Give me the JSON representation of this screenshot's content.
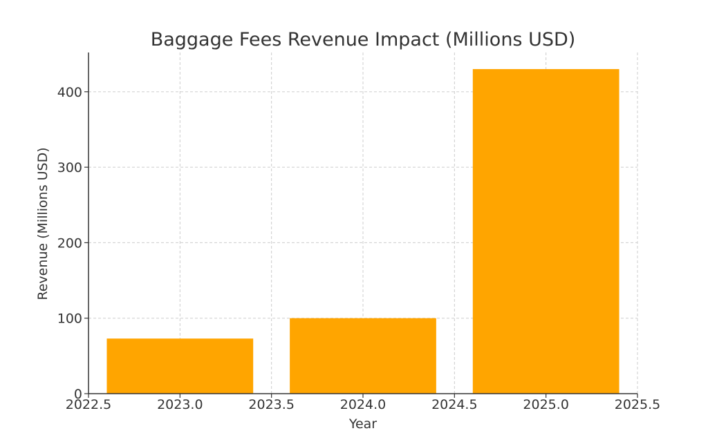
{
  "chart_data": {
    "type": "bar",
    "title": "Baggage Fees Revenue Impact (Millions USD)",
    "xlabel": "Year",
    "ylabel": "Revenue (Millions USD)",
    "x": [
      2023.0,
      2024.0,
      2025.0
    ],
    "values": [
      73,
      100,
      430
    ],
    "bar_width": 0.8,
    "xlim": [
      2022.5,
      2025.5
    ],
    "ylim": [
      0,
      452
    ],
    "x_ticks": [
      2022.5,
      2023.0,
      2023.5,
      2024.0,
      2024.5,
      2025.0,
      2025.5
    ],
    "x_tick_labels": [
      "2022.5",
      "2023.0",
      "2023.5",
      "2024.0",
      "2024.5",
      "2025.0",
      "2025.5"
    ],
    "y_ticks": [
      0,
      100,
      200,
      300,
      400
    ],
    "y_tick_labels": [
      "0",
      "100",
      "200",
      "300",
      "400"
    ],
    "grid": true,
    "bar_color": "#FFA500"
  }
}
